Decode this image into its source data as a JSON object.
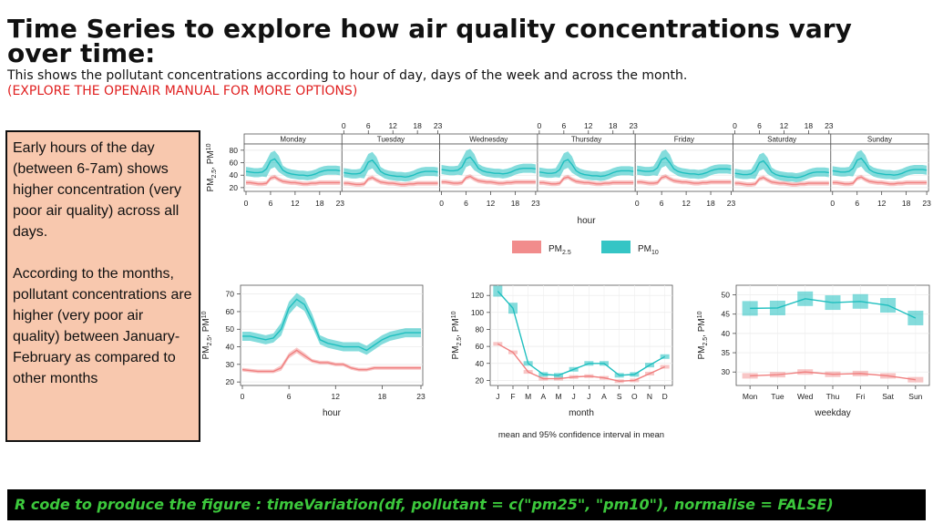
{
  "header": {
    "title": "Time Series to explore how air quality concentrations vary over time:",
    "subtitle": "This shows the pollutant concentrations according to hour of day, days of the week and across the month.",
    "note": "(EXPLORE THE OPENAIR MANUAL FOR MORE OPTIONS)"
  },
  "notes": {
    "para1": "Early hours of the day (between 6-7am) shows higher concentration (very poor air quality) across all days.",
    "para2": "According to the months, pollutant concentrations are higher (very poor air quality) between January-February as compared to other months"
  },
  "code": {
    "text": "R code to produce the figure : timeVariation(df, pollutant = c(\"pm25\", \"pm10\"), normalise = FALSE)"
  },
  "colors": {
    "pm25": "#f08080",
    "pm10": "#1fbfbf",
    "text_red": "#e02020",
    "code_green": "#3cc83c"
  },
  "chart_data": [
    {
      "type": "line",
      "panel": "day-hour",
      "days": [
        "Monday",
        "Tuesday",
        "Wednesday",
        "Thursday",
        "Friday",
        "Saturday",
        "Sunday"
      ],
      "xlabel": "hour",
      "ylabel_main": "PM",
      "ylabel_sub1": "2.5",
      "ylabel_sep": ", PM",
      "ylabel_sub2": "10",
      "xticks": [
        0,
        6,
        12,
        18,
        23
      ],
      "yticks": [
        20,
        40,
        60,
        80
      ],
      "ylim": [
        14,
        90
      ],
      "series": [
        {
          "name_main": "PM",
          "name_sub": "2.5",
          "key": "pm25",
          "values": [
            28,
            28,
            27,
            26,
            26,
            27,
            35,
            37,
            33,
            30,
            29,
            28,
            28,
            27,
            26,
            26,
            27,
            27,
            28,
            28,
            28,
            28,
            28,
            28
          ]
        },
        {
          "name_main": "PM",
          "name_sub": "10",
          "key": "pm10",
          "values": [
            46,
            45,
            44,
            44,
            45,
            50,
            63,
            66,
            58,
            48,
            44,
            42,
            41,
            40,
            40,
            39,
            40,
            42,
            45,
            47,
            48,
            48,
            48,
            47
          ]
        }
      ]
    },
    {
      "type": "line",
      "panel": "hour",
      "xlabel": "hour",
      "xticks": [
        0,
        6,
        12,
        18,
        23
      ],
      "yticks": [
        20,
        30,
        40,
        50,
        60,
        70
      ],
      "ylim": [
        18,
        75
      ],
      "series": [
        {
          "key": "pm25",
          "values": [
            27,
            26.5,
            26,
            26,
            26,
            28,
            35,
            38,
            35,
            32,
            31,
            31,
            30,
            30,
            28,
            27,
            27,
            28,
            28,
            28,
            28,
            28,
            28,
            28
          ]
        },
        {
          "key": "pm10",
          "values": [
            46,
            46,
            45,
            44,
            45,
            50,
            62,
            67,
            64,
            55,
            44,
            42,
            41,
            40,
            40,
            40,
            38,
            41,
            44,
            46,
            47,
            48,
            48,
            48
          ]
        }
      ]
    },
    {
      "type": "line",
      "panel": "month",
      "xlabel": "month",
      "categories": [
        "J",
        "F",
        "M",
        "A",
        "M",
        "J",
        "J",
        "A",
        "S",
        "O",
        "N",
        "D"
      ],
      "yticks": [
        20,
        40,
        60,
        80,
        100,
        120
      ],
      "ylim": [
        14,
        132
      ],
      "series": [
        {
          "key": "pm25",
          "values": [
            63,
            53,
            30,
            22,
            22,
            24,
            25,
            23,
            19,
            20,
            28,
            36
          ]
        },
        {
          "key": "pm10",
          "values": [
            125,
            105,
            40,
            27,
            26,
            33,
            40,
            40,
            26,
            27,
            38,
            48
          ]
        }
      ],
      "caption": "mean and 95% confidence interval in mean"
    },
    {
      "type": "line",
      "panel": "weekday",
      "xlabel": "weekday",
      "categories": [
        "Mon",
        "Tue",
        "Wed",
        "Thu",
        "Fri",
        "Sat",
        "Sun"
      ],
      "yticks": [
        30,
        35,
        40,
        45,
        50
      ],
      "ylim": [
        26.5,
        52.5
      ],
      "series": [
        {
          "key": "pm25",
          "values": [
            29,
            29.3,
            30,
            29.4,
            29.6,
            29,
            28
          ]
        },
        {
          "key": "pm10",
          "values": [
            46.5,
            46.6,
            49,
            48,
            48.3,
            47.3,
            44
          ]
        }
      ]
    }
  ]
}
